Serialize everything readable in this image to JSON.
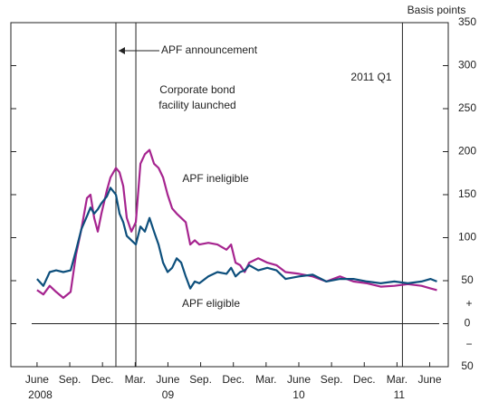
{
  "chart_data": {
    "type": "line",
    "y_axis_label": "Basis points",
    "x": [
      6.0,
      6.58,
      7.16,
      7.75,
      8.41,
      9.08,
      9.57,
      10.07,
      10.57,
      10.9,
      11.24,
      11.57,
      11.9,
      12.4,
      12.73,
      13.23,
      13.56,
      13.9,
      14.23,
      14.65,
      15.06,
      15.48,
      15.89,
      16.31,
      16.73,
      17.14,
      17.56,
      17.97,
      18.39,
      18.8,
      19.22,
      19.63,
      20.05,
      20.46,
      20.88,
      21.71,
      22.54,
      23.37,
      23.79,
      24.2,
      24.62,
      25.04,
      25.45,
      26.28,
      27.11,
      27.95,
      28.78,
      30.02,
      31.27,
      32.52,
      33.77,
      35.01,
      36.26,
      37.51,
      38.76,
      40.0,
      41.25,
      42.08,
      42.66
    ],
    "series": [
      {
        "name": "APF ineligible",
        "color": "#a6248f",
        "values": [
          39,
          34,
          44,
          37,
          30,
          37,
          80,
          110,
          146,
          150,
          123,
          107,
          128,
          155,
          170,
          181,
          176,
          160,
          123,
          107,
          118,
          186,
          197,
          202,
          186,
          181,
          170,
          150,
          134,
          128,
          123,
          118,
          92,
          97,
          92,
          94,
          92,
          86,
          92,
          71,
          68,
          60,
          71,
          76,
          71,
          68,
          60,
          58,
          55,
          49,
          55,
          49,
          47,
          43,
          44,
          46,
          44,
          41,
          39
        ]
      },
      {
        "name": "APF eligible",
        "color": "#0d4f7c",
        "values": [
          52,
          44,
          60,
          62,
          60,
          62,
          85,
          110,
          125,
          135,
          128,
          133,
          140,
          148,
          158,
          150,
          128,
          118,
          102,
          97,
          92,
          113,
          107,
          123,
          107,
          92,
          71,
          60,
          65,
          76,
          71,
          55,
          41,
          49,
          47,
          55,
          60,
          58,
          65,
          55,
          60,
          62,
          68,
          62,
          65,
          62,
          52,
          55,
          57,
          49,
          52,
          52,
          49,
          47,
          49,
          47,
          49,
          52,
          49
        ]
      }
    ],
    "xlim": [
      3.6,
      43.7
    ],
    "xticks": [
      {
        "value": 6,
        "label": "June"
      },
      {
        "value": 9,
        "label": "Sep."
      },
      {
        "value": 12,
        "label": "Dec."
      },
      {
        "value": 15,
        "label": "Mar."
      },
      {
        "value": 18,
        "label": "June"
      },
      {
        "value": 21,
        "label": "Sep."
      },
      {
        "value": 24,
        "label": "Dec."
      },
      {
        "value": 27,
        "label": "Mar."
      },
      {
        "value": 30,
        "label": "June"
      },
      {
        "value": 33,
        "label": "Sep."
      },
      {
        "value": 36,
        "label": "Dec."
      },
      {
        "value": 39,
        "label": "Mar."
      },
      {
        "value": 42,
        "label": "June"
      }
    ],
    "year_ticks": [
      {
        "value": 6.3,
        "label": "2008"
      },
      {
        "value": 18,
        "label": "09"
      },
      {
        "value": 30,
        "label": "10"
      },
      {
        "value": 39.2,
        "label": "11"
      }
    ],
    "ylim": [
      -50,
      350
    ],
    "yticks": [
      {
        "value": -50,
        "label": "50"
      },
      0,
      50,
      100,
      150,
      200,
      250,
      300,
      350
    ],
    "zero_line": true,
    "events": [
      13.23,
      15.06,
      39.5
    ],
    "annotations": [
      "APF announcement",
      "Corporate bond",
      "facility launched",
      "2011 Q1",
      "APF ineligible",
      "APF eligible",
      "+",
      "−"
    ]
  }
}
